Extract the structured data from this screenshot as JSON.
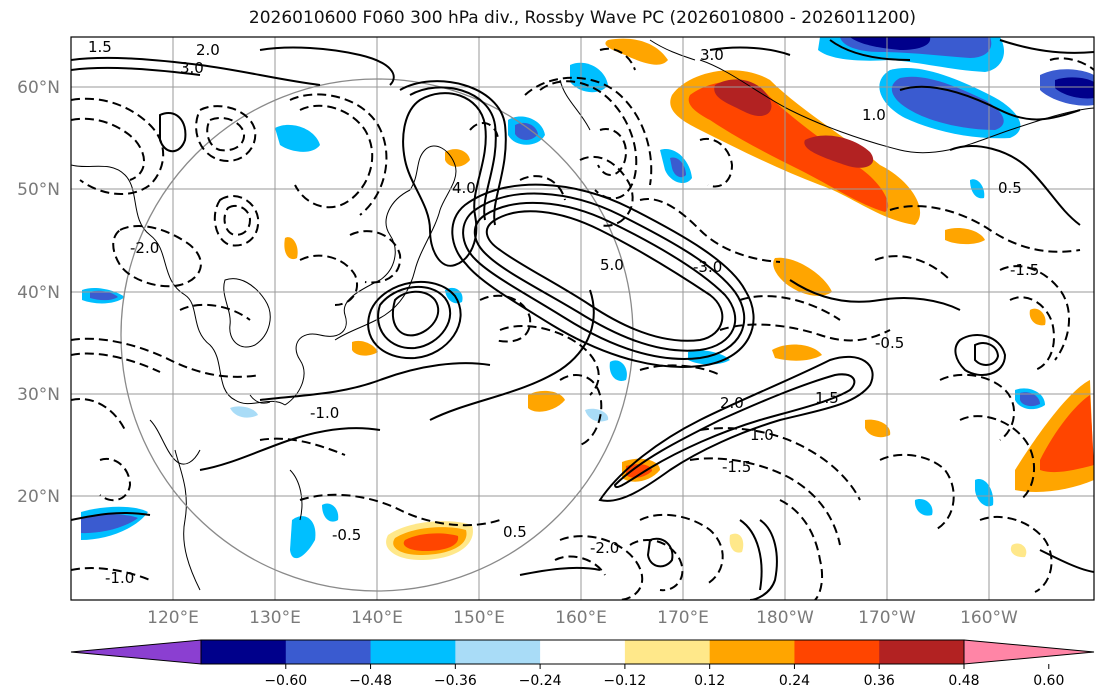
{
  "title": "2026010600 F060 300 hPa div., Rossby Wave PC (2026010800 - 2026011200)",
  "lat_labels": [
    "60°N",
    "50°N",
    "40°N",
    "30°N",
    "20°N"
  ],
  "lon_labels": [
    "120°E",
    "130°E",
    "140°E",
    "150°E",
    "160°E",
    "170°E",
    "180°W",
    "170°W",
    "160°W"
  ],
  "colorbar": {
    "ticks": [
      "−0.60",
      "−0.48",
      "−0.36",
      "−0.24",
      "−0.12",
      "0.12",
      "0.24",
      "0.36",
      "0.48",
      "0.60"
    ],
    "colors": [
      "#8b3fd1",
      "#00008b",
      "#3a5bd0",
      "#00bfff",
      "#a9dcf7",
      "#ffffff",
      "#ffe88a",
      "#ffa500",
      "#ff4500",
      "#b22222",
      "#ff85a6"
    ]
  },
  "colors": {
    "positive": [
      "#ffe88a",
      "#ffa500",
      "#ff4500",
      "#b22222"
    ],
    "negative": [
      "#a9dcf7",
      "#00bfff",
      "#3a5bd0",
      "#00008b"
    ]
  },
  "contour_labels": [
    "3.0",
    "2.0",
    "1.5",
    "1.0",
    "0.5",
    "-0.5",
    "-1.0",
    "-1.5",
    "-2.0",
    "-3.0",
    "4.0",
    "5.0",
    "3.0",
    "-1.0",
    "0.5",
    "1.5",
    "2.0",
    "-0.5",
    "1.0",
    "-1.5",
    "-2.0"
  ]
}
